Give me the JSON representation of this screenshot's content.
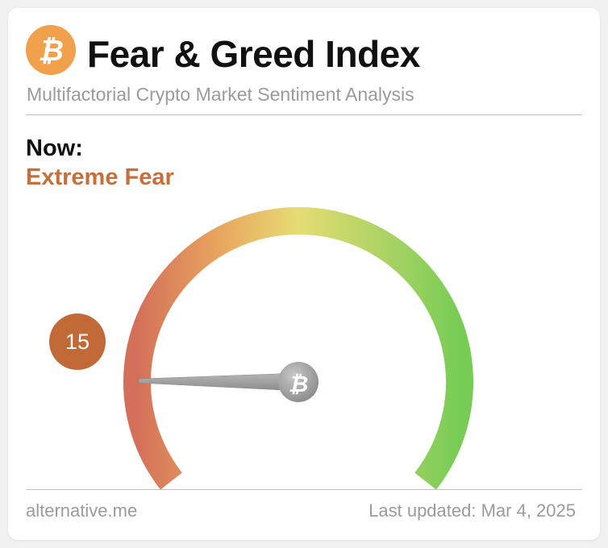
{
  "header": {
    "logo_icon": "bitcoin-icon",
    "title": "Fear & Greed Index",
    "subtitle": "Multifactorial Crypto Market Sentiment Analysis"
  },
  "status": {
    "now_label": "Now:",
    "classification": "Extreme Fear",
    "classification_color": "#c56f3c"
  },
  "gauge": {
    "value": "15",
    "min": 0,
    "max": 100,
    "badge_color": "#c26a37",
    "colors": [
      "#d4705a",
      "#e8a45e",
      "#e6dc74",
      "#77cc55"
    ],
    "needle_icon": "bitcoin-icon"
  },
  "footer": {
    "source": "alternative.me",
    "updated": "Last updated: Mar 4, 2025"
  }
}
